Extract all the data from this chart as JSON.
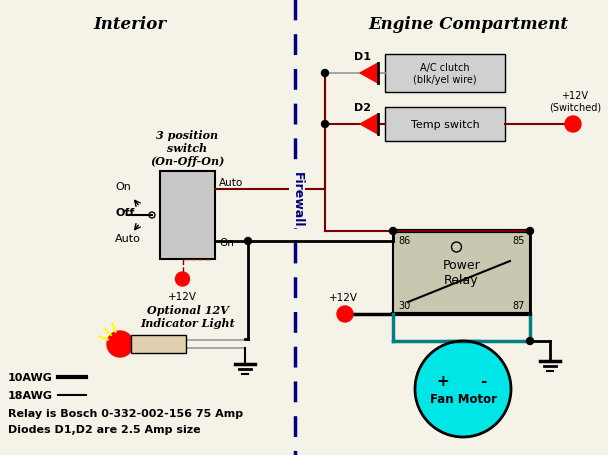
{
  "title_interior": "Interior",
  "title_engine": "Engine Compartment",
  "firewall_label": "Firewall",
  "bg_color": "#f5f2e8",
  "dark_red": "#7a0000",
  "black": "#000000",
  "gray": "#999999",
  "teal_wire": "#008080",
  "relay_fill": "#c8c8b0",
  "box_fill": "#d0d0d0",
  "fan_fill": "#00e5e5",
  "legend_10awg": "10AWG",
  "legend_18awg": "18AWG",
  "legend_relay": "Relay is Bosch 0-332-002-156 75 Amp",
  "legend_diodes": "Diodes D1,D2 are 2.5 Amp size",
  "switch_label": "3 position\nswitch\n(On-Off-On)",
  "on_label": "On",
  "off_label": "Off",
  "auto_label": "Auto",
  "auto_wire_label": "Auto",
  "on_wire_label": "On",
  "relay_label": "Power\nRelay",
  "fan_label": "Fan Motor",
  "d1_label": "D1",
  "d2_label": "D2",
  "ac_clutch_label": "A/C clutch\n(blk/yel wire)",
  "temp_switch_label": "Temp switch",
  "plus12v_label": "+12V",
  "plus12v_switched_label": "+12V\n(Switched)",
  "indicator_label": "Optional 12V\nIndicator Light"
}
